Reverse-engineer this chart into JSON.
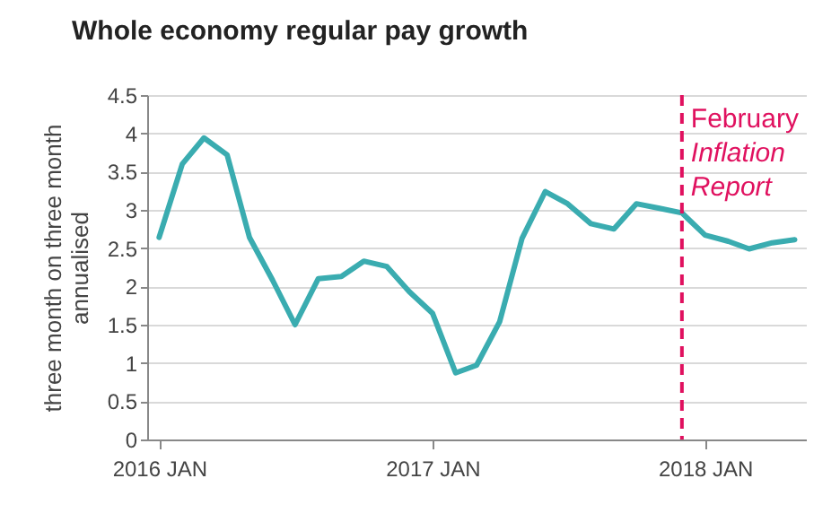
{
  "chart_data": {
    "type": "line",
    "title": "Whole economy regular pay growth",
    "ylabel": "three month on three month annualised",
    "x": [
      "2016-01",
      "2016-02",
      "2016-03",
      "2016-04",
      "2016-05",
      "2016-06",
      "2016-07",
      "2016-08",
      "2016-09",
      "2016-10",
      "2016-11",
      "2016-12",
      "2017-01",
      "2017-02",
      "2017-03",
      "2017-04",
      "2017-05",
      "2017-06",
      "2017-07",
      "2017-08",
      "2017-09",
      "2017-10",
      "2017-11",
      "2017-12",
      "2018-01",
      "2018-02",
      "2018-03",
      "2018-04",
      "2018-05"
    ],
    "series": [
      {
        "color": "#3aacb0",
        "values": [
          2.64,
          3.6,
          3.94,
          3.72,
          2.64,
          2.08,
          1.5,
          2.1,
          2.13,
          2.33,
          2.26,
          1.93,
          1.65,
          0.87,
          0.97,
          1.54,
          2.63,
          3.24,
          3.08,
          2.82,
          2.75,
          3.08,
          3.02,
          2.96,
          2.67,
          2.59,
          2.49,
          2.57,
          2.61
        ]
      }
    ],
    "xlim": [
      "2015-12-16",
      "2018-05-16"
    ],
    "xticks": [
      {
        "value": "2016-01",
        "label": "2016 JAN"
      },
      {
        "value": "2017-01",
        "label": "2017 JAN"
      },
      {
        "value": "2018-01",
        "label": "2018 JAN"
      }
    ],
    "ylim": [
      0,
      4.5
    ],
    "yticks": [
      0,
      0.5,
      1,
      1.5,
      2,
      2.5,
      3,
      3.5,
      4,
      4.5
    ],
    "grid": "y",
    "marker": "none",
    "line_style": "solid",
    "ref_lines": [
      {
        "axis": "x",
        "value": "2017-12",
        "label": "February Inflation Report",
        "color": "#e0115f",
        "line_style": "dashed"
      }
    ]
  }
}
